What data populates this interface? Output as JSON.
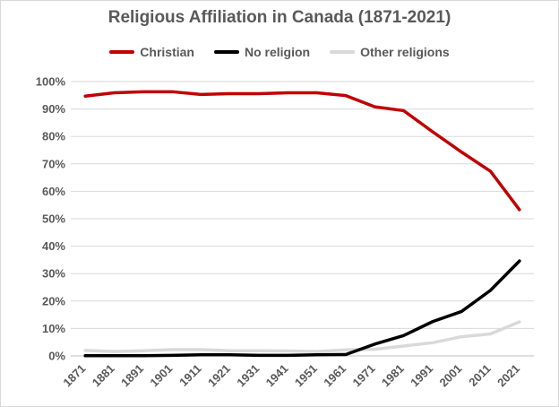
{
  "chart_data": {
    "type": "line",
    "title": "Religious Affiliation in Canada (1871-2021)",
    "xlabel": "",
    "ylabel": "",
    "x": [
      "1871",
      "1881",
      "1891",
      "1901",
      "1911",
      "1921",
      "1931",
      "1941",
      "1951",
      "1961",
      "1971",
      "1981",
      "1991",
      "2001",
      "2011",
      "2021"
    ],
    "y_ticks": [
      "0%",
      "10%",
      "20%",
      "30%",
      "40%",
      "50%",
      "60%",
      "70%",
      "80%",
      "90%",
      "100%"
    ],
    "ylim": [
      0,
      100
    ],
    "y_unit": "percent",
    "grid": "horizontal",
    "legend_position": "top",
    "series": [
      {
        "name": "Christian",
        "color": "#c00000",
        "values": [
          94.7,
          95.9,
          96.3,
          96.3,
          95.3,
          95.6,
          95.6,
          95.9,
          95.9,
          94.9,
          90.8,
          89.4,
          81.7,
          74.3,
          67.3,
          53.3
        ]
      },
      {
        "name": "No religion",
        "color": "#000000",
        "values": [
          0.1,
          0.1,
          0.1,
          0.2,
          0.4,
          0.4,
          0.2,
          0.2,
          0.4,
          0.5,
          4.3,
          7.4,
          12.5,
          16.2,
          23.9,
          34.6
        ]
      },
      {
        "name": "Other religions",
        "color": "#d9d9d9",
        "values": [
          2.0,
          1.6,
          1.9,
          2.3,
          2.3,
          1.9,
          1.9,
          1.8,
          1.6,
          2.2,
          2.4,
          3.6,
          4.8,
          7.0,
          8.0,
          12.4
        ]
      }
    ]
  }
}
